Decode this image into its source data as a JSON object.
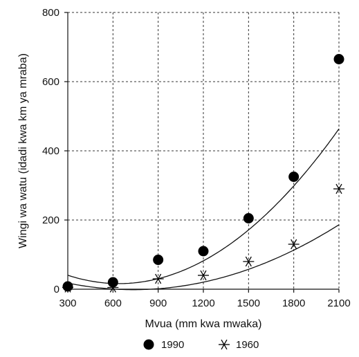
{
  "chart_data": {
    "type": "scatter",
    "xlabel": "Mvua (mm kwa mwaka)",
    "ylabel": "Wingi wa watu (idadi kwa km ya mraba)",
    "x_ticks": [
      "300",
      "600",
      "900",
      "1200",
      "1500",
      "1800",
      "2100"
    ],
    "y_ticks": [
      "0",
      "200",
      "400",
      "600",
      "800"
    ],
    "xlim": [
      300,
      2100
    ],
    "ylim": [
      0,
      800
    ],
    "grid": true,
    "legend_position": "bottom-center",
    "series": [
      {
        "name": "1990",
        "marker": "filled-circle",
        "color": "#000000",
        "points": [
          [
            300,
            8
          ],
          [
            600,
            20
          ],
          [
            900,
            85
          ],
          [
            1200,
            110
          ],
          [
            1500,
            205
          ],
          [
            1800,
            325
          ],
          [
            2100,
            665
          ]
        ],
        "trend": {
          "from": 300,
          "to": 2100,
          "coef": [
            102.0,
            -0.2683,
            0.0002097
          ]
        }
      },
      {
        "name": "1960",
        "marker": "asterisk",
        "color": "#000000",
        "points": [
          [
            300,
            5
          ],
          [
            600,
            5
          ],
          [
            900,
            30
          ],
          [
            1200,
            40
          ],
          [
            1500,
            80
          ],
          [
            1800,
            130
          ],
          [
            2100,
            290
          ]
        ],
        "trend": {
          "from": 300,
          "to": 2100,
          "coef": [
            53.2,
            -0.1483,
            0.0001008
          ]
        }
      }
    ]
  }
}
